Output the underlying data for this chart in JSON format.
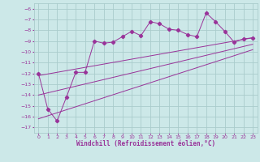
{
  "xlabel": "Windchill (Refroidissement éolien,°C)",
  "bg_color": "#cce8e8",
  "grid_color": "#aacccc",
  "line_color": "#993399",
  "tick_color": "#993399",
  "xlim": [
    -0.5,
    23.5
  ],
  "ylim": [
    -17.5,
    -5.5
  ],
  "xticks": [
    0,
    1,
    2,
    3,
    4,
    5,
    6,
    7,
    8,
    9,
    10,
    11,
    12,
    13,
    14,
    15,
    16,
    17,
    18,
    19,
    20,
    21,
    22,
    23
  ],
  "yticks": [
    -17,
    -16,
    -15,
    -14,
    -13,
    -12,
    -11,
    -10,
    -9,
    -8,
    -7,
    -6
  ],
  "scatter_x": [
    0,
    1,
    2,
    3,
    4,
    5,
    6,
    7,
    8,
    9,
    10,
    11,
    12,
    13,
    14,
    15,
    16,
    17,
    18,
    19,
    20,
    21,
    22,
    23
  ],
  "scatter_y": [
    -12.0,
    -15.3,
    -16.4,
    -14.2,
    -11.9,
    -11.9,
    -9.0,
    -9.2,
    -9.1,
    -8.6,
    -8.1,
    -8.5,
    -7.2,
    -7.4,
    -7.9,
    -8.0,
    -8.4,
    -8.6,
    -6.4,
    -7.2,
    -8.1,
    -9.1,
    -8.8,
    -8.7
  ],
  "line1_x": [
    0,
    23
  ],
  "line1_y": [
    -12.2,
    -8.7
  ],
  "line2_x": [
    0,
    23
  ],
  "line2_y": [
    -14.0,
    -9.3
  ],
  "line3_x": [
    0,
    23
  ],
  "line3_y": [
    -16.2,
    -9.8
  ]
}
